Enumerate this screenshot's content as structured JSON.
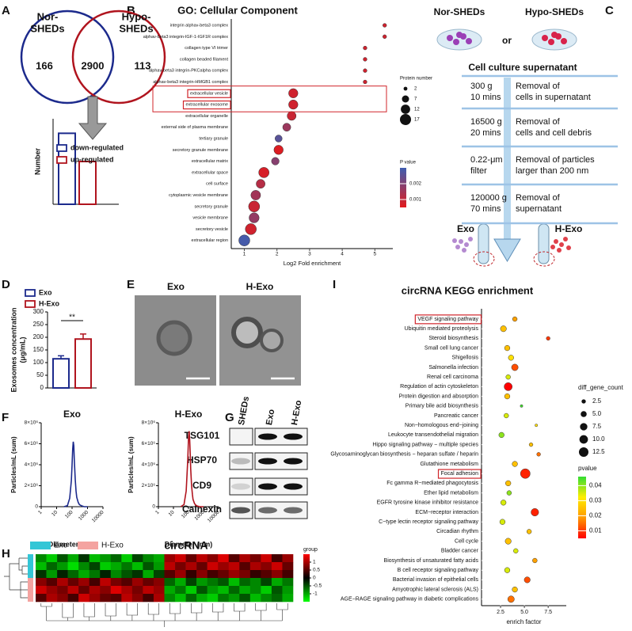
{
  "panel_labels": [
    "A",
    "B",
    "C",
    "D",
    "E",
    "F",
    "G",
    "H",
    "I"
  ],
  "venn": {
    "left_label": [
      "Nor-",
      "SHEDs"
    ],
    "right_label": [
      "Hypo-",
      "SHEDs"
    ],
    "left_only": 166,
    "both": 2900,
    "right_only": 113
  },
  "flow": {
    "sources": [
      "Nor-SHEDs",
      "Hypo-SHEDs"
    ],
    "or": "or",
    "header": "Cell culture supernatant",
    "steps": [
      {
        "condition": [
          "300 g",
          "10 mins"
        ],
        "description": [
          "Removal of",
          "cells in supernatant"
        ]
      },
      {
        "condition": [
          "16500 g",
          "20 mins"
        ],
        "description": [
          "Removal of",
          "cells and cell debris"
        ]
      },
      {
        "condition": [
          "0.22-μm",
          "filter"
        ],
        "description": [
          "Removal of particles",
          "larger than 200 nm"
        ]
      },
      {
        "condition": [
          "120000 g",
          "70 mins"
        ],
        "description": [
          "Removal of",
          "supernatant"
        ]
      }
    ],
    "products": [
      "Exo",
      "H-Exo"
    ]
  },
  "em": {
    "labels": [
      "Exo",
      "H-Exo"
    ]
  },
  "western": {
    "lanes": [
      "SHEDs",
      "Exo",
      "H-Exo"
    ],
    "proteins": [
      "TSG101",
      "HSP70",
      "CD9",
      "Calnexin"
    ]
  },
  "chart_data": [
    {
      "type": "bar",
      "ylabel": "Number",
      "ylim": [
        0,
        100
      ],
      "series": [
        {
          "name": "down-regulated",
          "color": "#1c2a8c",
          "values": [
            83
          ]
        },
        {
          "name": "up-regulated",
          "color": "#b0141e",
          "values": [
            50
          ]
        }
      ]
    },
    {
      "type": "bubble",
      "title": "GO: Cellular Component",
      "xlabel": "Log2 Fold enrichment",
      "categories": [
        "integrin alphav-beta3 complex",
        "alphav-beta3 integrin-IGF-1-IGF1R complex",
        "collagen type VI trimer",
        "collagen beaded filament",
        "alphav-beta3 integrin-PKCalpha complex",
        "alphav-beta3 integrin-HMGB1 complex",
        "extracellular vesicle",
        "extracellular exosome",
        "extracellular organelle",
        "external side of plasma membrane",
        "tertiary granule",
        "secretory granule membrane",
        "extracellular matrix",
        "extracellular space",
        "cell surface",
        "cytoplasmic vesicle membrane",
        "secretory granule",
        "vesicle membrane",
        "secretory vesicle",
        "extracellular region"
      ],
      "values": [
        5.3,
        5.3,
        4.7,
        4.7,
        4.7,
        4.7,
        2.5,
        2.5,
        2.45,
        2.3,
        2.05,
        2.05,
        1.95,
        1.6,
        1.5,
        1.35,
        1.3,
        1.3,
        1.2,
        1.0
      ],
      "sizes": [
        2,
        2,
        2,
        2,
        2,
        2,
        12,
        12,
        11,
        9,
        7,
        12,
        8,
        15,
        11,
        13,
        17,
        14,
        17,
        17
      ],
      "pvalues": [
        0.0008,
        0.0008,
        0.0008,
        0.0008,
        0.0008,
        0.0008,
        0.0008,
        0.0008,
        0.0009,
        0.0016,
        0.0026,
        0.0006,
        0.0019,
        0.0007,
        0.0012,
        0.0015,
        0.0009,
        0.0017,
        0.0008,
        0.0029
      ],
      "xlim": [
        0.6,
        5.55
      ],
      "xticks": [
        1,
        2,
        3,
        4,
        5
      ],
      "size_title": "Protein number",
      "size_legend": [
        2,
        7,
        12,
        17
      ],
      "color_title": "P value",
      "clim": [
        0.0005,
        0.003
      ],
      "color_ticks": [
        0.001,
        0.002
      ],
      "colors": [
        "#e31a1c",
        "#3f5eb0"
      ],
      "highlight": [
        6,
        7
      ],
      "grid": false
    },
    {
      "type": "bar",
      "ylabel": [
        "Exosomes concentration",
        "(μg/mL)"
      ],
      "ylim": [
        0,
        300
      ],
      "yticks": [
        0,
        50,
        100,
        150,
        200,
        250,
        300
      ],
      "series": [
        {
          "name": "Exo",
          "color": "#1c2a8c",
          "values": [
            115
          ],
          "errors": [
            12
          ]
        },
        {
          "name": "H-Exo",
          "color": "#b0141e",
          "values": [
            193
          ],
          "errors": [
            20
          ]
        }
      ],
      "annotation": "**"
    },
    {
      "type": "line",
      "title": "Exo",
      "xlabel": "Diameter (nm)",
      "ylabel": "Particles/mL (sum)",
      "color": "#1c2a8c",
      "log_x": true,
      "x": [
        30,
        50,
        70,
        90,
        100,
        110,
        120,
        130,
        140,
        160,
        180,
        200,
        250,
        300,
        400,
        600,
        1000
      ],
      "values": [
        0,
        100000,
        800000,
        2500000,
        4000000,
        5500000,
        6200000,
        5800000,
        4500000,
        2600000,
        1500000,
        900000,
        400000,
        200000,
        100000,
        0,
        0
      ],
      "xlim": [
        1,
        10000
      ],
      "xticks": [
        1,
        10,
        100,
        1000,
        10000
      ],
      "ylim": [
        0,
        8000000
      ],
      "yticks": [
        0,
        {
          "value": 2000000,
          "label": "2×10⁶"
        },
        {
          "value": 4000000,
          "label": "4×10⁶"
        },
        {
          "value": 6000000,
          "label": "6×10⁶"
        },
        {
          "value": 8000000,
          "label": "8×10⁶"
        }
      ]
    },
    {
      "type": "line",
      "title": "H-Exo",
      "xlabel": "Diameter (nm)",
      "ylabel": "Particles/mL (sum)",
      "color": "#b0141e",
      "log_x": true,
      "x": [
        30,
        50,
        70,
        90,
        100,
        110,
        120,
        130,
        140,
        160,
        180,
        200,
        250,
        300,
        400,
        600,
        1000
      ],
      "values": [
        0,
        200000,
        1500000,
        4500000,
        6500000,
        7200000,
        6400000,
        5000000,
        3600000,
        2000000,
        1200000,
        700000,
        300000,
        150000,
        50000,
        0,
        0
      ],
      "xlim": [
        1,
        10000
      ],
      "xticks": [
        1,
        10,
        100,
        1000,
        10000
      ],
      "ylim": [
        0,
        8000000
      ],
      "yticks": [
        0,
        {
          "value": 2000000,
          "label": "2×10⁶"
        },
        {
          "value": 4000000,
          "label": "4×10⁶"
        },
        {
          "value": 6000000,
          "label": "6×10⁶"
        },
        {
          "value": 8000000,
          "label": "8×10⁶"
        }
      ]
    },
    {
      "type": "heatmap",
      "title": "circRNA",
      "values": [
        [
          -0.8,
          -1.2,
          -0.5,
          -1.0,
          -0.3,
          -1.1,
          -0.9,
          -0.6,
          -1.2,
          -0.4,
          -0.8,
          -1.0,
          0.9,
          1.2,
          0.6,
          1.1,
          0.8,
          1.3,
          0.5,
          1.0,
          0.7,
          1.2,
          0.4,
          0.9
        ],
        [
          -1.1,
          -0.6,
          -0.9,
          -1.3,
          -0.8,
          -0.4,
          -1.2,
          -1.0,
          -0.7,
          -1.1,
          -0.5,
          -0.9,
          1.1,
          0.7,
          1.0,
          0.6,
          1.2,
          0.9,
          1.1,
          0.5,
          1.0,
          0.8,
          1.2,
          0.6
        ],
        [
          -0.3,
          -0.9,
          -0.2,
          -0.6,
          -1.0,
          -0.7,
          -0.2,
          -0.8,
          -0.5,
          -0.3,
          -1.0,
          -0.4,
          0.5,
          0.9,
          0.3,
          0.8,
          0.4,
          0.6,
          0.9,
          0.7,
          0.3,
          0.5,
          0.8,
          0.4
        ],
        [
          0.8,
          0.5,
          1.0,
          0.6,
          0.9,
          0.4,
          1.1,
          0.7,
          0.5,
          0.9,
          0.6,
          0.8,
          -0.6,
          -1.0,
          -0.4,
          -0.9,
          -0.7,
          -0.5,
          -1.1,
          -0.6,
          -0.8,
          -0.4,
          -1.0,
          -0.7
        ],
        [
          1.2,
          0.9,
          0.7,
          1.1,
          0.6,
          1.0,
          0.8,
          1.3,
          1.0,
          0.7,
          1.1,
          0.9,
          -1.0,
          -0.7,
          -1.2,
          -0.5,
          -0.9,
          -1.1,
          -0.6,
          -1.0,
          -0.8,
          -1.2,
          -0.5,
          -0.9
        ],
        [
          0.5,
          1.0,
          0.8,
          0.4,
          1.2,
          0.9,
          0.6,
          0.5,
          1.1,
          0.8,
          0.4,
          1.0,
          -0.8,
          -1.1,
          -0.6,
          -1.0,
          -1.2,
          -0.7,
          -0.9,
          -0.5,
          -1.1,
          -0.8,
          -0.6,
          -1.0
        ]
      ],
      "row_groups": [
        0,
        0,
        0,
        1,
        1,
        1
      ],
      "groups": [
        {
          "name": "Exo",
          "color": "#33c6d6"
        },
        {
          "name": "H-Exo",
          "color": "#f4a3a0"
        }
      ],
      "legend_title": "group",
      "clim": [
        -1.5,
        1.5
      ],
      "color_ticks": [
        1,
        0.5,
        0,
        -0.5,
        -1
      ],
      "colors": [
        "#00ff00",
        "#000000",
        "#ff0000"
      ]
    },
    {
      "type": "bubble",
      "title": "circRNA KEGG enrichment",
      "xlabel": "enrich factor",
      "categories": [
        "VEGF signaling pathway",
        "Ubiquitin mediated proteolysis",
        "Steroid biosynthesis",
        "Small cell lung cancer",
        "Shigellosis",
        "Salmonella infection",
        "Renal cell carcinoma",
        "Regulation of actin cytoskeleton",
        "Protein digestion and absorption",
        "Primary bile acid biosynthesis",
        "Pancreatic cancer",
        "Non−homologous end−joining",
        "Leukocyte transendothelial migration",
        "Hippo signaling pathway − multiple species",
        "Glycosaminoglycan biosynthesis − heparan sulfate / heparin",
        "Glutathione metabolism",
        "Focal adhesion",
        "Fc gamma R−mediated phagocytosis",
        "Ether lipid metabolism",
        "EGFR tyrosine kinase inhibitor resistance",
        "ECM−receptor interaction",
        "C−type lectin receptor signaling pathway",
        "Circadian rhythm",
        "Cell cycle",
        "Bladder cancer",
        "Biosynthesis of unsaturated fatty acids",
        "B cell receptor signaling pathway",
        "Bacterial invasion of epithelial cells",
        "Amyotrophic lateral sclerosis (ALS)",
        "AGE−RAGE signaling pathway in diabetic complications"
      ],
      "values": [
        4.0,
        2.8,
        7.5,
        3.2,
        3.6,
        4.0,
        3.3,
        3.3,
        3.2,
        4.7,
        3.1,
        6.25,
        2.6,
        5.7,
        6.5,
        4.0,
        5.1,
        3.3,
        3.4,
        2.8,
        6.1,
        2.7,
        5.5,
        3.3,
        4.1,
        6.1,
        3.2,
        5.3,
        4.0,
        3.6
      ],
      "sizes": [
        3,
        5,
        2,
        4,
        4,
        6,
        3,
        9,
        4,
        1,
        3,
        1,
        4,
        2,
        2,
        4,
        13,
        4,
        3,
        4,
        8,
        4,
        3,
        5,
        3,
        3,
        4,
        5,
        4,
        6
      ],
      "pvalues": [
        0.02,
        0.025,
        0.01,
        0.025,
        0.03,
        0.012,
        0.035,
        0.005,
        0.025,
        0.045,
        0.035,
        0.03,
        0.04,
        0.025,
        0.015,
        0.025,
        0.008,
        0.025,
        0.04,
        0.035,
        0.008,
        0.035,
        0.025,
        0.025,
        0.035,
        0.02,
        0.035,
        0.012,
        0.025,
        0.015
      ],
      "xlim": [
        0.5,
        9.4
      ],
      "xticks": [
        2.5,
        {
          "value": 5,
          "label": "5.0"
        },
        7.5
      ],
      "size_title": "diff_gene_count",
      "size_legend": [
        2.5,
        {
          "value": 5,
          "label": "5.0"
        },
        7.5,
        {
          "value": 10,
          "label": "10.0"
        },
        12.5
      ],
      "color_title": "pvalue",
      "clim": [
        0.005,
        0.046
      ],
      "color_ticks": [
        0.01,
        0.02,
        0.03,
        0.04
      ],
      "colors": [
        "#ff0000",
        "#ff9900",
        "#ffee00",
        "#33dd33"
      ],
      "highlight": [
        0,
        16
      ],
      "grid": true
    }
  ]
}
